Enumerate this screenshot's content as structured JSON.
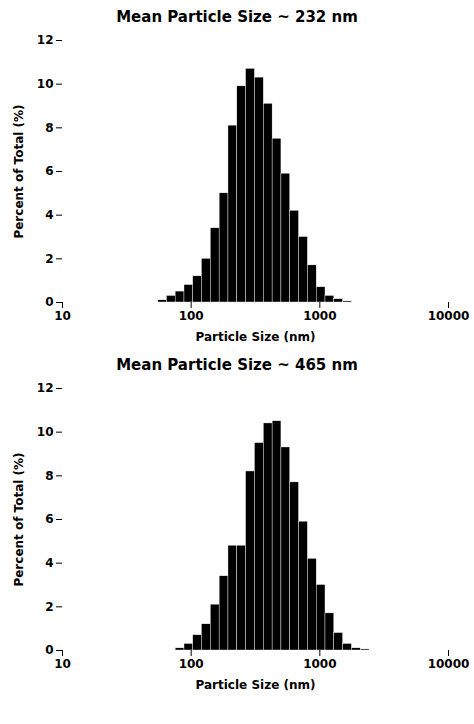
{
  "chart_data": [
    {
      "type": "bar",
      "title": "Mean Particle Size ~ 232 nm",
      "x_label": "Particle Size (nm)",
      "y_label": "Percent of Total (%)",
      "x": [
        60,
        70,
        82,
        96,
        112,
        131,
        154,
        180,
        211,
        247,
        289,
        339,
        397,
        465,
        544,
        637,
        746,
        874,
        1023,
        1197,
        1402,
        1641,
        1921,
        2249,
        2634,
        3084,
        3612
      ],
      "values": [
        0.1,
        0.3,
        0.5,
        0.8,
        1.2,
        2.0,
        3.4,
        5.0,
        8.1,
        9.9,
        10.7,
        10.3,
        9.1,
        7.5,
        5.9,
        4.2,
        3.0,
        1.7,
        0.7,
        0.3,
        0.15,
        0.05,
        0.0,
        0.0,
        0.0,
        0.0,
        0.0
      ],
      "color": "#000000",
      "log": "x",
      "xlim": [
        10,
        10000
      ],
      "xticks": [
        10,
        100,
        1000,
        10000
      ],
      "ylim": [
        0,
        12
      ],
      "yticks": [
        0,
        2,
        4,
        6,
        8,
        10,
        12
      ],
      "grid": false
    },
    {
      "type": "bar",
      "title": "Mean Particle Size ~ 465 nm",
      "x_label": "Particle Size (nm)",
      "y_label": "Percent of Total (%)",
      "x": [
        60,
        70,
        82,
        96,
        112,
        131,
        154,
        180,
        211,
        247,
        289,
        339,
        397,
        465,
        544,
        637,
        746,
        874,
        1023,
        1197,
        1402,
        1641,
        1921,
        2249,
        2634,
        3084,
        3612
      ],
      "values": [
        0.0,
        0.0,
        0.1,
        0.3,
        0.7,
        1.2,
        2.1,
        3.4,
        4.8,
        4.8,
        8.2,
        9.5,
        10.4,
        10.5,
        9.3,
        7.7,
        5.9,
        4.2,
        3.0,
        1.7,
        0.8,
        0.3,
        0.1,
        0.05,
        0.0,
        0.0,
        0.0
      ],
      "color": "#000000",
      "log": "x",
      "xlim": [
        10,
        10000
      ],
      "xticks": [
        10,
        100,
        1000,
        10000
      ],
      "ylim": [
        0,
        12
      ],
      "yticks": [
        0,
        2,
        4,
        6,
        8,
        10,
        12
      ],
      "grid": false
    }
  ]
}
